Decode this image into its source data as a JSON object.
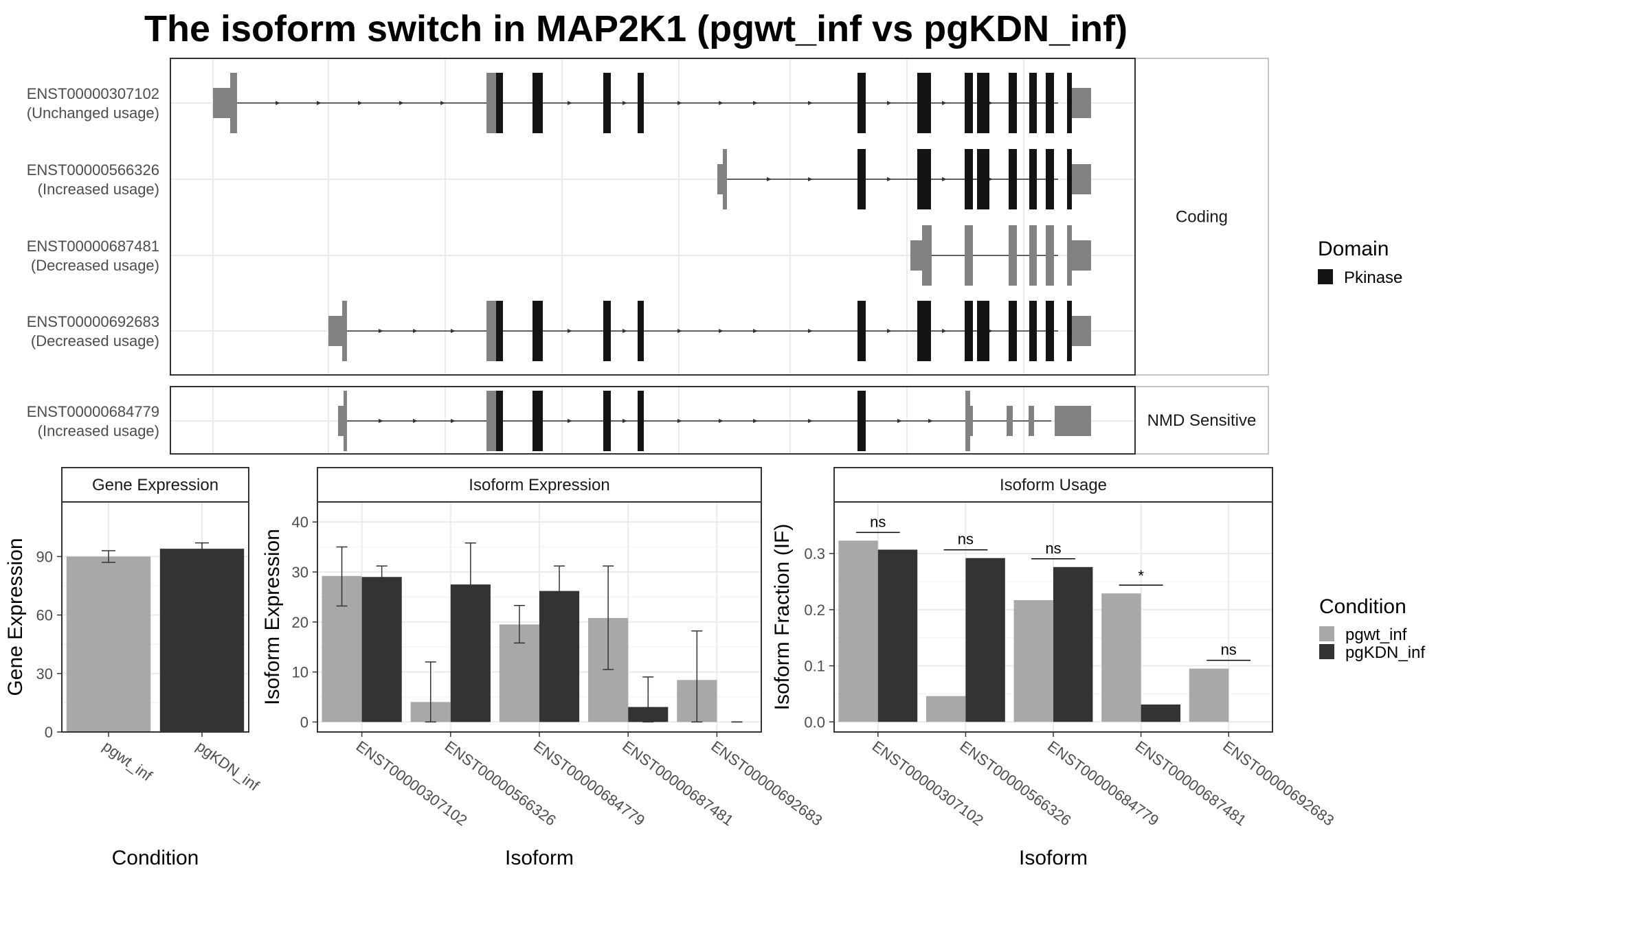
{
  "title": "The isoform switch in MAP2K1 (pgwt_inf vs pgKDN_inf)",
  "colors": {
    "pgwt_inf": "#a8a8a8",
    "pgKDN_inf": "#333333",
    "utr": "#828282",
    "pkinase": "#141414",
    "grid": "#ebebeb",
    "frame": "#333333"
  },
  "transcripts": {
    "coding_label": "Coding",
    "nmd_label": "NMD Sensitive",
    "rows": [
      {
        "id": "ENST00000307102",
        "usage": "(Unchanged usage)"
      },
      {
        "id": "ENST00000566326",
        "usage": "(Increased usage)"
      },
      {
        "id": "ENST00000687481",
        "usage": "(Decreased usage)"
      },
      {
        "id": "ENST00000692683",
        "usage": "(Decreased usage)"
      },
      {
        "id": "ENST00000684779",
        "usage": "(Increased usage)"
      }
    ]
  },
  "legend": {
    "domain_title": "Domain",
    "domain_items": [
      {
        "label": "Pkinase",
        "color_key": "pkinase"
      }
    ],
    "condition_title": "Condition",
    "condition_items": [
      {
        "label": "pgwt_inf",
        "color_key": "pgwt_inf"
      },
      {
        "label": "pgKDN_inf",
        "color_key": "pgKDN_inf"
      }
    ]
  },
  "chart_data": [
    {
      "type": "bar",
      "panel": "Gene Expression",
      "xlabel": "Condition",
      "ylabel": "Gene Expression",
      "ylim": [
        0,
        118
      ],
      "yticks": [
        0,
        30,
        60,
        90
      ],
      "categories": [
        "pgwt_inf",
        "pgKDN_inf"
      ],
      "values": [
        90,
        94
      ],
      "error_low": [
        87,
        91
      ],
      "error_high": [
        93,
        97
      ]
    },
    {
      "type": "bar",
      "panel": "Isoform Expression",
      "xlabel": "Isoform",
      "ylabel": "Isoform Expression",
      "ylim": [
        -2,
        44
      ],
      "yticks": [
        0,
        10,
        20,
        30,
        40
      ],
      "categories": [
        "ENST00000307102",
        "ENST00000566326",
        "ENST00000684779",
        "ENST00000687481",
        "ENST00000692683"
      ],
      "series": [
        {
          "name": "pgwt_inf",
          "values": [
            29.2,
            4.0,
            19.5,
            20.8,
            8.4
          ],
          "error_low": [
            23.2,
            0,
            15.8,
            10.5,
            0
          ],
          "error_high": [
            35.0,
            12.0,
            23.3,
            31.2,
            18.2
          ]
        },
        {
          "name": "pgKDN_inf",
          "values": [
            29.0,
            27.5,
            26.2,
            3.0,
            0
          ],
          "error_low": [
            27.0,
            19.2,
            21.2,
            0,
            0
          ],
          "error_high": [
            31.2,
            35.8,
            31.2,
            9.0,
            0
          ]
        }
      ]
    },
    {
      "type": "bar",
      "panel": "Isoform Usage",
      "xlabel": "Isoform",
      "ylabel": "Isoform Fraction (IF)",
      "ylim": [
        -0.018,
        0.392
      ],
      "yticks": [
        0.0,
        0.1,
        0.2,
        0.3
      ],
      "ytick_labels": [
        "0.0",
        "0.1",
        "0.2",
        "0.3"
      ],
      "categories": [
        "ENST00000307102",
        "ENST00000566326",
        "ENST00000684779",
        "ENST00000687481",
        "ENST00000692683"
      ],
      "series": [
        {
          "name": "pgwt_inf",
          "values": [
            0.323,
            0.046,
            0.217,
            0.229,
            0.095
          ]
        },
        {
          "name": "pgKDN_inf",
          "values": [
            0.307,
            0.292,
            0.276,
            0.031,
            0.0
          ]
        }
      ],
      "significance": [
        "ns",
        "ns",
        "ns",
        "*",
        "ns"
      ]
    }
  ]
}
